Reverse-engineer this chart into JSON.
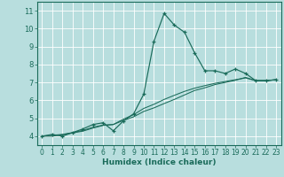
{
  "xlabel": "Humidex (Indice chaleur)",
  "background_color": "#b8dede",
  "line_color": "#1a6b5a",
  "xlim": [
    -0.5,
    23.5
  ],
  "ylim": [
    3.5,
    11.5
  ],
  "xticks": [
    0,
    1,
    2,
    3,
    4,
    5,
    6,
    7,
    8,
    9,
    10,
    11,
    12,
    13,
    14,
    15,
    16,
    17,
    18,
    19,
    20,
    21,
    22,
    23
  ],
  "yticks": [
    4,
    5,
    6,
    7,
    8,
    9,
    10,
    11
  ],
  "line1_x": [
    0,
    1,
    2,
    3,
    4,
    5,
    6,
    7,
    8,
    9,
    10,
    11,
    12,
    13,
    14,
    15,
    16,
    17,
    18,
    19,
    20,
    21,
    22,
    23
  ],
  "line1_y": [
    4.0,
    4.1,
    4.0,
    4.2,
    4.4,
    4.65,
    4.75,
    4.3,
    4.85,
    5.25,
    6.35,
    9.3,
    10.85,
    10.2,
    9.8,
    8.65,
    7.65,
    7.65,
    7.5,
    7.75,
    7.5,
    7.1,
    7.1,
    7.15
  ],
  "line2_x": [
    0,
    1,
    2,
    3,
    4,
    5,
    6,
    7,
    8,
    9,
    10,
    11,
    12,
    13,
    14,
    15,
    16,
    17,
    18,
    19,
    20,
    21,
    22,
    23
  ],
  "line2_y": [
    4.0,
    4.05,
    4.1,
    4.2,
    4.32,
    4.5,
    4.62,
    4.65,
    4.95,
    5.2,
    5.55,
    5.78,
    6.05,
    6.28,
    6.5,
    6.68,
    6.82,
    6.95,
    7.05,
    7.15,
    7.25,
    7.1,
    7.1,
    7.15
  ],
  "line3_x": [
    0,
    1,
    2,
    3,
    4,
    5,
    6,
    7,
    8,
    9,
    10,
    11,
    12,
    13,
    14,
    15,
    16,
    17,
    18,
    19,
    20,
    21,
    22,
    23
  ],
  "line3_y": [
    4.0,
    4.0,
    4.08,
    4.18,
    4.28,
    4.45,
    4.6,
    4.65,
    4.88,
    5.08,
    5.38,
    5.58,
    5.82,
    6.05,
    6.3,
    6.55,
    6.7,
    6.88,
    7.0,
    7.12,
    7.28,
    7.1,
    7.1,
    7.15
  ]
}
